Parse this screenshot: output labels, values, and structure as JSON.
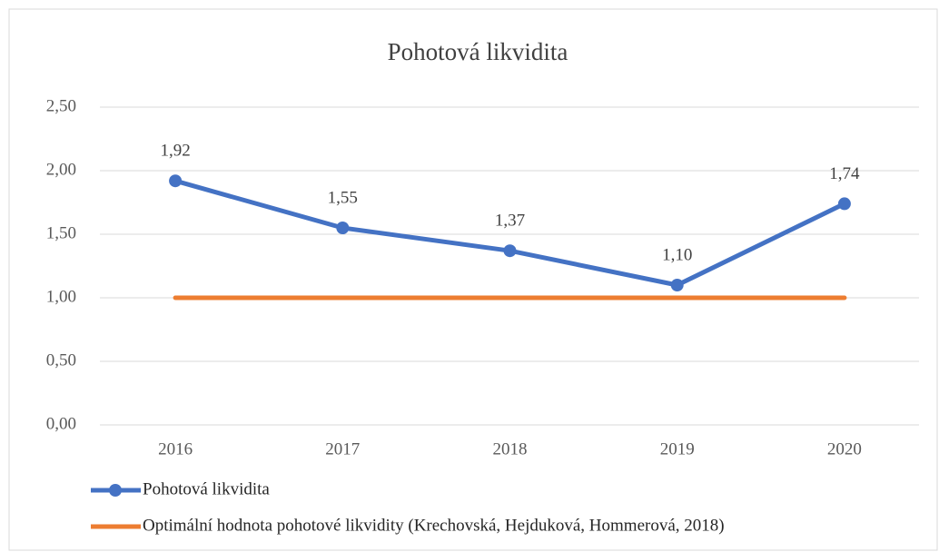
{
  "chart_data": {
    "type": "line",
    "title": "Pohotová likvidita",
    "categories": [
      "2016",
      "2017",
      "2018",
      "2019",
      "2020"
    ],
    "series": [
      {
        "name": "Pohotová likvidita",
        "color": "#4472c4",
        "values": [
          1.92,
          1.55,
          1.37,
          1.1,
          1.74
        ],
        "value_labels": [
          "1,92",
          "1,55",
          "1,37",
          "1,10",
          "1,74"
        ],
        "markers": true
      },
      {
        "name": "Optimální hodnota pohotové likvidity (Krechovská, Hejduková, Hommerová, 2018)",
        "color": "#ed7d31",
        "values": [
          1,
          1,
          1,
          1,
          1
        ],
        "markers": false
      }
    ],
    "ylim": [
      0,
      2.5
    ],
    "yticks": [
      {
        "value": 0,
        "label": "0,00"
      },
      {
        "value": 0.5,
        "label": "0,50"
      },
      {
        "value": 1,
        "label": "1,00"
      },
      {
        "value": 1.5,
        "label": "1,50"
      },
      {
        "value": 2,
        "label": "2,00"
      },
      {
        "value": 2.5,
        "label": "2,50"
      }
    ],
    "grid": true,
    "legend": "bottom"
  }
}
